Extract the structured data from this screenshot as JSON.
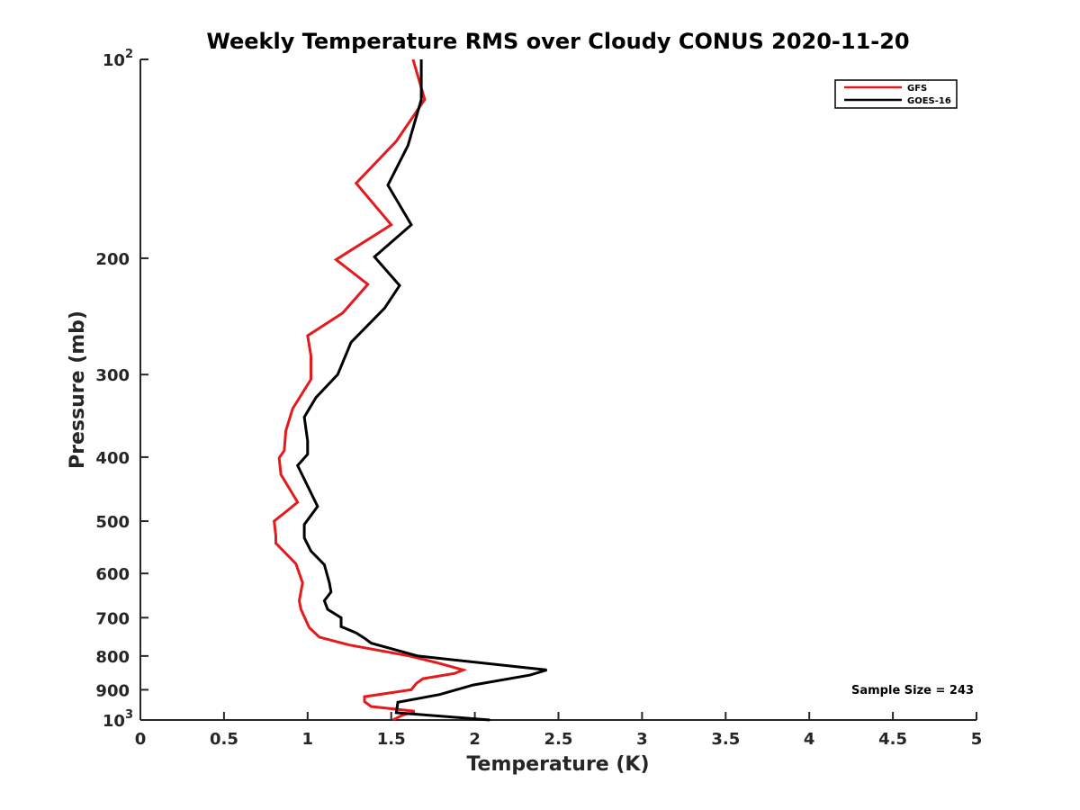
{
  "chart_data": {
    "type": "line",
    "title": "Weekly Temperature RMS over Cloudy CONUS 2020-11-20",
    "xlabel": "Temperature (K)",
    "ylabel": "Pressure (mb)",
    "xlim": [
      0,
      5
    ],
    "ylim": [
      100,
      1000
    ],
    "y_scale": "log",
    "y_reversed": true,
    "grid": false,
    "legend_position": "top-right",
    "x_ticks": [
      {
        "value": 0,
        "label": "0"
      },
      {
        "value": 0.5,
        "label": "0.5"
      },
      {
        "value": 1,
        "label": "1"
      },
      {
        "value": 1.5,
        "label": "1.5"
      },
      {
        "value": 2,
        "label": "2"
      },
      {
        "value": 2.5,
        "label": "2.5"
      },
      {
        "value": 3,
        "label": "3"
      },
      {
        "value": 3.5,
        "label": "3.5"
      },
      {
        "value": 4,
        "label": "4"
      },
      {
        "value": 4.5,
        "label": "4.5"
      },
      {
        "value": 5,
        "label": "5"
      }
    ],
    "y_ticks": [
      {
        "value": 100,
        "label": "10",
        "sup": "2"
      },
      {
        "value": 200,
        "label": "200"
      },
      {
        "value": 300,
        "label": "300"
      },
      {
        "value": 400,
        "label": "400"
      },
      {
        "value": 500,
        "label": "500"
      },
      {
        "value": 600,
        "label": "600"
      },
      {
        "value": 700,
        "label": "700"
      },
      {
        "value": 800,
        "label": "800"
      },
      {
        "value": 900,
        "label": "900"
      },
      {
        "value": 1000,
        "label": "10",
        "sup": "3"
      }
    ],
    "series": [
      {
        "name": "GFS",
        "color": "#e41a1c",
        "points": [
          [
            1.63,
            100
          ],
          [
            1.7,
            115
          ],
          [
            1.53,
            133
          ],
          [
            1.29,
            154
          ],
          [
            1.5,
            178
          ],
          [
            1.17,
            201
          ],
          [
            1.36,
            219
          ],
          [
            1.21,
            242
          ],
          [
            1.0,
            262
          ],
          [
            1.02,
            281
          ],
          [
            1.02,
            305
          ],
          [
            0.91,
            338
          ],
          [
            0.87,
            365
          ],
          [
            0.86,
            391
          ],
          [
            0.83,
            401
          ],
          [
            0.84,
            425
          ],
          [
            0.94,
            468
          ],
          [
            0.87,
            484
          ],
          [
            0.8,
            500
          ],
          [
            0.81,
            526
          ],
          [
            0.81,
            540
          ],
          [
            0.93,
            580
          ],
          [
            0.97,
            620
          ],
          [
            0.95,
            660
          ],
          [
            0.96,
            680
          ],
          [
            1.01,
            725
          ],
          [
            1.07,
            749
          ],
          [
            1.25,
            770
          ],
          [
            1.61,
            800
          ],
          [
            1.78,
            820
          ],
          [
            1.93,
            840
          ],
          [
            1.88,
            850
          ],
          [
            1.69,
            866
          ],
          [
            1.65,
            880
          ],
          [
            1.62,
            900
          ],
          [
            1.34,
            922
          ],
          [
            1.34,
            938
          ],
          [
            1.38,
            954
          ],
          [
            1.64,
            970
          ],
          [
            1.56,
            985
          ],
          [
            1.51,
            1000
          ]
        ]
      },
      {
        "name": "GOES-16",
        "color": "#000000",
        "points": [
          [
            1.68,
            100
          ],
          [
            1.68,
            115
          ],
          [
            1.6,
            135
          ],
          [
            1.48,
            155
          ],
          [
            1.62,
            178
          ],
          [
            1.4,
            199
          ],
          [
            1.55,
            220
          ],
          [
            1.46,
            238
          ],
          [
            1.26,
            268
          ],
          [
            1.18,
            300
          ],
          [
            1.05,
            325
          ],
          [
            0.98,
            348
          ],
          [
            1.0,
            378
          ],
          [
            1.0,
            396
          ],
          [
            0.94,
            412
          ],
          [
            1.06,
            475
          ],
          [
            0.98,
            506
          ],
          [
            0.98,
            530
          ],
          [
            1.02,
            555
          ],
          [
            1.1,
            582
          ],
          [
            1.13,
            620
          ],
          [
            1.14,
            640
          ],
          [
            1.1,
            660
          ],
          [
            1.12,
            680
          ],
          [
            1.2,
            700
          ],
          [
            1.2,
            722
          ],
          [
            1.29,
            738
          ],
          [
            1.34,
            752
          ],
          [
            1.38,
            765
          ],
          [
            1.66,
            800
          ],
          [
            2.43,
            840
          ],
          [
            2.33,
            855
          ],
          [
            1.99,
            885
          ],
          [
            1.79,
            915
          ],
          [
            1.54,
            940
          ],
          [
            1.53,
            975
          ],
          [
            2.09,
            1000
          ]
        ]
      }
    ],
    "annotation": "Sample Size = 243"
  }
}
